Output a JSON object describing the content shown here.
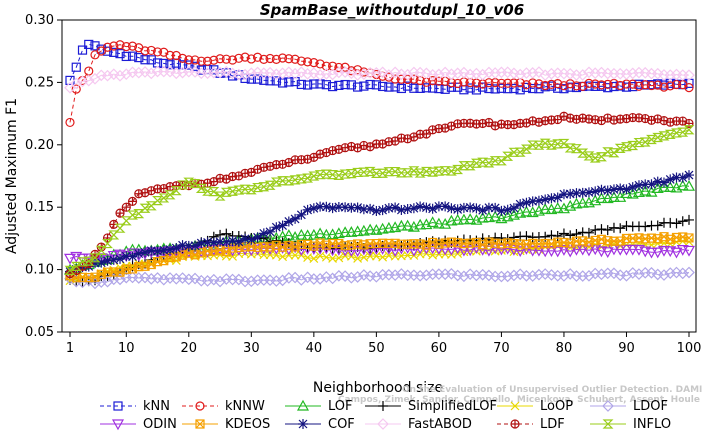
{
  "chart_data": {
    "type": "line",
    "title": "SpamBase_withoutdupl_10_v06",
    "xlabel": "Neighborhood size",
    "ylabel": "Adjusted Maximum F1",
    "xlim": [
      1,
      100
    ],
    "ylim": [
      0.05,
      0.3
    ],
    "x_ticks": [
      "1",
      "10",
      "20",
      "30",
      "40",
      "50",
      "60",
      "70",
      "80",
      "90",
      "100"
    ],
    "y_ticks": [
      "0.05",
      "0.10",
      "0.15",
      "0.20",
      "0.25",
      "0.30"
    ],
    "grid": false,
    "legend_position": "bottom",
    "credit": "Campos, Zimek, Sander, Campello, Micenkova, Schubert, Assent, Houle",
    "credit_line1": "On the Evaluation of Unsupervised Outlier Detection. DAMI, 2015.",
    "series": [
      {
        "name": "kNN",
        "color": "#1c1cd6",
        "marker": "square",
        "dash": "4,3",
        "knots": [
          [
            1,
            0.251
          ],
          [
            2,
            0.262
          ],
          [
            3,
            0.276
          ],
          [
            4,
            0.281
          ],
          [
            6,
            0.276
          ],
          [
            10,
            0.272
          ],
          [
            15,
            0.266
          ],
          [
            20,
            0.263
          ],
          [
            25,
            0.258
          ],
          [
            30,
            0.253
          ],
          [
            40,
            0.248
          ],
          [
            50,
            0.247
          ],
          [
            60,
            0.245
          ],
          [
            70,
            0.245
          ],
          [
            80,
            0.246
          ],
          [
            90,
            0.247
          ],
          [
            100,
            0.249
          ]
        ]
      },
      {
        "name": "kNNW",
        "color": "#e01b1b",
        "marker": "circle",
        "dash": "4,3",
        "knots": [
          [
            1,
            0.219
          ],
          [
            2,
            0.245
          ],
          [
            3,
            0.252
          ],
          [
            4,
            0.258
          ],
          [
            5,
            0.272
          ],
          [
            7,
            0.278
          ],
          [
            9,
            0.28
          ],
          [
            12,
            0.277
          ],
          [
            16,
            0.273
          ],
          [
            20,
            0.268
          ],
          [
            25,
            0.268
          ],
          [
            30,
            0.27
          ],
          [
            35,
            0.269
          ],
          [
            40,
            0.266
          ],
          [
            45,
            0.261
          ],
          [
            50,
            0.256
          ],
          [
            55,
            0.252
          ],
          [
            60,
            0.25
          ],
          [
            70,
            0.249
          ],
          [
            80,
            0.248
          ],
          [
            90,
            0.248
          ],
          [
            100,
            0.247
          ]
        ]
      },
      {
        "name": "LOF",
        "color": "#22b822",
        "marker": "triangle-up",
        "dash": "",
        "knots": [
          [
            1,
            0.1
          ],
          [
            5,
            0.105
          ],
          [
            10,
            0.115
          ],
          [
            20,
            0.118
          ],
          [
            30,
            0.124
          ],
          [
            40,
            0.128
          ],
          [
            50,
            0.132
          ],
          [
            60,
            0.137
          ],
          [
            70,
            0.142
          ],
          [
            80,
            0.15
          ],
          [
            90,
            0.16
          ],
          [
            100,
            0.168
          ]
        ]
      },
      {
        "name": "SimplifiedLOF",
        "color": "#000000",
        "marker": "plus",
        "dash": "",
        "knots": [
          [
            1,
            0.091
          ],
          [
            5,
            0.092
          ],
          [
            10,
            0.1
          ],
          [
            15,
            0.11
          ],
          [
            20,
            0.116
          ],
          [
            25,
            0.128
          ],
          [
            30,
            0.126
          ],
          [
            40,
            0.117
          ],
          [
            50,
            0.118
          ],
          [
            60,
            0.122
          ],
          [
            70,
            0.125
          ],
          [
            80,
            0.128
          ],
          [
            90,
            0.134
          ],
          [
            100,
            0.139
          ]
        ]
      },
      {
        "name": "LoOP",
        "color": "#e8d800",
        "marker": "x",
        "dash": "",
        "knots": [
          [
            1,
            0.092
          ],
          [
            5,
            0.095
          ],
          [
            10,
            0.102
          ],
          [
            20,
            0.11
          ],
          [
            30,
            0.112
          ],
          [
            40,
            0.11
          ],
          [
            50,
            0.11
          ],
          [
            60,
            0.113
          ],
          [
            70,
            0.115
          ],
          [
            80,
            0.118
          ],
          [
            90,
            0.12
          ],
          [
            100,
            0.122
          ]
        ]
      },
      {
        "name": "LDOF",
        "color": "#b0a6e8",
        "marker": "diamond",
        "dash": "",
        "knots": [
          [
            1,
            0.092
          ],
          [
            5,
            0.09
          ],
          [
            10,
            0.093
          ],
          [
            20,
            0.092
          ],
          [
            30,
            0.091
          ],
          [
            40,
            0.093
          ],
          [
            50,
            0.095
          ],
          [
            60,
            0.096
          ],
          [
            70,
            0.095
          ],
          [
            80,
            0.096
          ],
          [
            90,
            0.096
          ],
          [
            100,
            0.097
          ]
        ]
      },
      {
        "name": "ODIN",
        "color": "#a030e0",
        "marker": "triangle-down",
        "dash": "",
        "knots": [
          [
            1,
            0.11
          ],
          [
            5,
            0.108
          ],
          [
            10,
            0.112
          ],
          [
            20,
            0.115
          ],
          [
            30,
            0.117
          ],
          [
            40,
            0.117
          ],
          [
            50,
            0.116
          ],
          [
            60,
            0.117
          ],
          [
            70,
            0.116
          ],
          [
            80,
            0.116
          ],
          [
            90,
            0.115
          ],
          [
            100,
            0.115
          ]
        ]
      },
      {
        "name": "KDEOS",
        "color": "#f5a000",
        "marker": "square-x",
        "dash": "",
        "knots": [
          [
            1,
            0.094
          ],
          [
            5,
            0.095
          ],
          [
            10,
            0.1
          ],
          [
            20,
            0.112
          ],
          [
            30,
            0.118
          ],
          [
            40,
            0.12
          ],
          [
            50,
            0.12
          ],
          [
            60,
            0.121
          ],
          [
            70,
            0.121
          ],
          [
            80,
            0.122
          ],
          [
            90,
            0.124
          ],
          [
            100,
            0.126
          ]
        ]
      },
      {
        "name": "COF",
        "color": "#141480",
        "marker": "asterisk",
        "dash": "",
        "knots": [
          [
            1,
            0.099
          ],
          [
            5,
            0.105
          ],
          [
            10,
            0.11
          ],
          [
            20,
            0.12
          ],
          [
            30,
            0.124
          ],
          [
            35,
            0.135
          ],
          [
            40,
            0.15
          ],
          [
            50,
            0.148
          ],
          [
            60,
            0.15
          ],
          [
            70,
            0.148
          ],
          [
            80,
            0.16
          ],
          [
            90,
            0.165
          ],
          [
            100,
            0.175
          ]
        ]
      },
      {
        "name": "FastABOD",
        "color": "#f5c8f0",
        "marker": "diamond",
        "dash": "",
        "knots": [
          [
            1,
            0.245
          ],
          [
            2,
            0.248
          ],
          [
            4,
            0.252
          ],
          [
            6,
            0.255
          ],
          [
            10,
            0.257
          ],
          [
            15,
            0.258
          ],
          [
            20,
            0.258
          ],
          [
            30,
            0.257
          ],
          [
            40,
            0.257
          ],
          [
            50,
            0.257
          ],
          [
            60,
            0.257
          ],
          [
            70,
            0.257
          ],
          [
            80,
            0.257
          ],
          [
            90,
            0.257
          ],
          [
            100,
            0.257
          ]
        ]
      },
      {
        "name": "LDF",
        "color": "#b01010",
        "marker": "circle-plus",
        "dash": "4,3",
        "knots": [
          [
            1,
            0.098
          ],
          [
            4,
            0.104
          ],
          [
            7,
            0.125
          ],
          [
            9,
            0.145
          ],
          [
            12,
            0.16
          ],
          [
            16,
            0.165
          ],
          [
            20,
            0.168
          ],
          [
            25,
            0.172
          ],
          [
            30,
            0.178
          ],
          [
            35,
            0.185
          ],
          [
            40,
            0.19
          ],
          [
            45,
            0.197
          ],
          [
            50,
            0.2
          ],
          [
            55,
            0.206
          ],
          [
            60,
            0.212
          ],
          [
            65,
            0.218
          ],
          [
            70,
            0.216
          ],
          [
            75,
            0.218
          ],
          [
            80,
            0.222
          ],
          [
            85,
            0.219
          ],
          [
            90,
            0.222
          ],
          [
            95,
            0.22
          ],
          [
            100,
            0.218
          ]
        ]
      },
      {
        "name": "INFLO",
        "color": "#9acd1a",
        "marker": "hourglass",
        "dash": "",
        "knots": [
          [
            1,
            0.1
          ],
          [
            5,
            0.11
          ],
          [
            10,
            0.14
          ],
          [
            15,
            0.155
          ],
          [
            20,
            0.17
          ],
          [
            25,
            0.16
          ],
          [
            30,
            0.165
          ],
          [
            40,
            0.175
          ],
          [
            50,
            0.178
          ],
          [
            60,
            0.178
          ],
          [
            70,
            0.188
          ],
          [
            75,
            0.2
          ],
          [
            80,
            0.2
          ],
          [
            85,
            0.19
          ],
          [
            90,
            0.198
          ],
          [
            95,
            0.205
          ],
          [
            100,
            0.212
          ]
        ]
      }
    ]
  }
}
